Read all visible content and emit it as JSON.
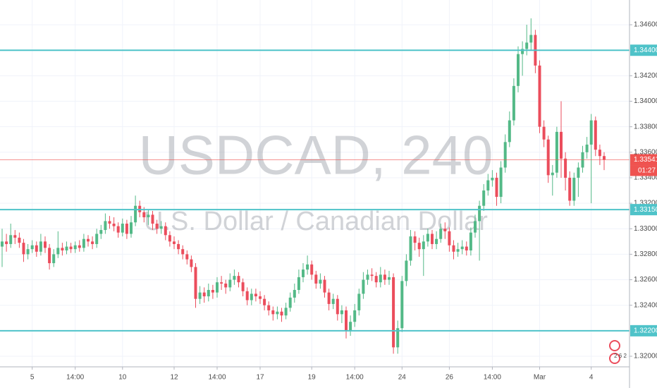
{
  "chart_data": {
    "type": "candlestick",
    "title": "USDCAD, 240",
    "subtitle": "U.S. Dollar / Canadian Dollar",
    "up_color": "#53b987",
    "down_color": "#eb4d5c",
    "level_color": "#4fc3c9",
    "last_color": "#ef5350",
    "grid": true,
    "ylim": [
      1.31917,
      1.34794
    ],
    "yticks": [
      {
        "value": 1.32,
        "label": "1.32000"
      },
      {
        "value": 1.324,
        "label": "1.32400"
      },
      {
        "value": 1.326,
        "label": "1.32600"
      },
      {
        "value": 1.328,
        "label": "1.32800"
      },
      {
        "value": 1.33,
        "label": "1.33000"
      },
      {
        "value": 1.332,
        "label": "1.33200"
      },
      {
        "value": 1.334,
        "label": "1.33400"
      },
      {
        "value": 1.336,
        "label": "1.33600"
      },
      {
        "value": 1.338,
        "label": "1.33800"
      },
      {
        "value": 1.34,
        "label": "1.34000"
      },
      {
        "value": 1.342,
        "label": "1.34200"
      },
      {
        "value": 1.346,
        "label": "1.34600"
      }
    ],
    "levels": [
      {
        "value": 1.344,
        "label": "1.34400"
      },
      {
        "value": 1.3315,
        "label": "1.33150"
      },
      {
        "value": 1.322,
        "label": "1.32200"
      }
    ],
    "last_price": 1.33541,
    "countdown": "01:27",
    "events_badge": "2 6 2",
    "categories": [
      null,
      null,
      null,
      null,
      null,
      null,
      null,
      "5",
      null,
      null,
      null,
      null,
      null,
      null,
      null,
      null,
      null,
      "14:00",
      null,
      null,
      null,
      null,
      null,
      null,
      null,
      null,
      null,
      null,
      "10",
      null,
      null,
      null,
      null,
      null,
      null,
      null,
      null,
      null,
      null,
      null,
      "12",
      null,
      null,
      null,
      null,
      null,
      null,
      null,
      null,
      null,
      "14:00",
      null,
      null,
      null,
      null,
      null,
      null,
      null,
      null,
      null,
      "17",
      null,
      null,
      null,
      null,
      null,
      null,
      null,
      null,
      null,
      null,
      null,
      "19",
      null,
      null,
      null,
      null,
      null,
      null,
      null,
      null,
      null,
      "14:00",
      null,
      null,
      null,
      null,
      null,
      null,
      null,
      null,
      null,
      null,
      "24",
      null,
      null,
      null,
      null,
      null,
      null,
      null,
      null,
      null,
      null,
      "26",
      null,
      null,
      null,
      null,
      null,
      null,
      null,
      null,
      null,
      "14:00",
      null,
      null,
      null,
      null,
      null,
      null,
      null,
      null,
      null,
      null,
      "Mar",
      null,
      null,
      null,
      null,
      null,
      null,
      null,
      null,
      null,
      null,
      null,
      "4",
      null,
      null,
      null
    ],
    "open": [
      1.3286,
      1.329,
      1.3288,
      1.3295,
      1.3293,
      1.3289,
      1.328,
      1.3284,
      1.3287,
      1.3282,
      1.329,
      1.3285,
      1.3273,
      1.328,
      1.3285,
      1.3283,
      1.3286,
      1.3284,
      1.3287,
      1.3285,
      1.3292,
      1.329,
      1.3288,
      1.3296,
      1.3299,
      1.3306,
      1.3304,
      1.3302,
      1.3297,
      1.3304,
      1.3296,
      1.3305,
      1.3318,
      1.3313,
      1.3309,
      1.3311,
      1.3304,
      1.33,
      1.3302,
      1.3295,
      1.329,
      1.3288,
      1.3284,
      1.328,
      1.3276,
      1.327,
      1.3245,
      1.325,
      1.3247,
      1.3252,
      1.325,
      1.3258,
      1.3257,
      1.3254,
      1.326,
      1.3263,
      1.3258,
      1.3251,
      1.3244,
      1.3249,
      1.3247,
      1.3245,
      1.324,
      1.3236,
      1.3233,
      1.3235,
      1.3232,
      1.3238,
      1.3246,
      1.3252,
      1.3262,
      1.3268,
      1.3272,
      1.3264,
      1.3257,
      1.326,
      1.325,
      1.3241,
      1.3245,
      1.3233,
      1.3236,
      1.322,
      1.3227,
      1.3236,
      1.3249,
      1.326,
      1.3264,
      1.3263,
      1.3258,
      1.3264,
      1.326,
      1.3262,
      1.3207,
      1.3222,
      1.3259,
      1.3275,
      1.3294,
      1.3289,
      1.3284,
      1.329,
      1.3296,
      1.3288,
      1.3292,
      1.33,
      1.3298,
      1.3287,
      1.3282,
      1.3284,
      1.3286,
      1.3283,
      1.3297,
      1.3306,
      1.3318,
      1.333,
      1.3338,
      1.334,
      1.3325,
      1.3348,
      1.3368,
      1.3385,
      1.3412,
      1.3437,
      1.3441,
      1.3446,
      1.3452,
      1.3428,
      1.338,
      1.337,
      1.3342,
      1.3344,
      1.3376,
      1.3355,
      1.334,
      1.3322,
      1.334,
      1.3348,
      1.336,
      1.3366,
      1.3385,
      1.3362,
      1.3357
    ],
    "high": [
      1.33,
      1.3296,
      1.3304,
      1.3299,
      1.3297,
      1.3292,
      1.3288,
      1.3291,
      1.329,
      1.3296,
      1.3294,
      1.3288,
      1.3284,
      1.3298,
      1.3289,
      1.329,
      1.3289,
      1.329,
      1.3291,
      1.3296,
      1.3295,
      1.3294,
      1.33,
      1.3303,
      1.3312,
      1.331,
      1.3309,
      1.3305,
      1.3308,
      1.3307,
      1.331,
      1.3326,
      1.3322,
      1.3317,
      1.3315,
      1.3314,
      1.3307,
      1.3306,
      1.3305,
      1.3298,
      1.3294,
      1.3291,
      1.3287,
      1.3283,
      1.3279,
      1.3273,
      1.3255,
      1.3254,
      1.3257,
      1.3256,
      1.3262,
      1.3263,
      1.326,
      1.3265,
      1.3268,
      1.3266,
      1.3261,
      1.3254,
      1.3253,
      1.3253,
      1.3251,
      1.3248,
      1.3243,
      1.3239,
      1.3239,
      1.3238,
      1.3242,
      1.325,
      1.3257,
      1.3268,
      1.3273,
      1.3279,
      1.3275,
      1.3267,
      1.3265,
      1.3263,
      1.3253,
      1.3249,
      1.3248,
      1.324,
      1.3239,
      1.3232,
      1.3241,
      1.3253,
      1.3266,
      1.3268,
      1.3269,
      1.3266,
      1.327,
      1.3268,
      1.3267,
      1.3265,
      1.3228,
      1.3263,
      1.328,
      1.3299,
      1.3298,
      1.3293,
      1.3295,
      1.33,
      1.3299,
      1.3298,
      1.3304,
      1.3305,
      1.3301,
      1.3291,
      1.3289,
      1.3291,
      1.329,
      1.3301,
      1.3311,
      1.3322,
      1.3335,
      1.3343,
      1.3346,
      1.3344,
      1.3353,
      1.3374,
      1.3392,
      1.3418,
      1.3443,
      1.3447,
      1.346,
      1.3465,
      1.3456,
      1.3432,
      1.3385,
      1.3373,
      1.335,
      1.338,
      1.34,
      1.336,
      1.3345,
      1.3344,
      1.3352,
      1.3365,
      1.3372,
      1.339,
      1.3388,
      1.3366,
      1.336
    ],
    "low": [
      1.327,
      1.3282,
      1.3285,
      1.3288,
      1.3285,
      1.3274,
      1.3276,
      1.3281,
      1.3278,
      1.3279,
      1.3281,
      1.3268,
      1.327,
      1.3277,
      1.3279,
      1.328,
      1.3281,
      1.3281,
      1.3282,
      1.3282,
      1.3286,
      1.3284,
      1.3285,
      1.3292,
      1.3296,
      1.33,
      1.3298,
      1.3293,
      1.3294,
      1.3292,
      1.3293,
      1.3302,
      1.3309,
      1.3305,
      1.3303,
      1.3299,
      1.3296,
      1.3296,
      1.3291,
      1.3286,
      1.3284,
      1.328,
      1.3276,
      1.3272,
      1.3266,
      1.3238,
      1.3241,
      1.3242,
      1.3243,
      1.3245,
      1.3246,
      1.3252,
      1.3249,
      1.3251,
      1.3256,
      1.3254,
      1.3247,
      1.324,
      1.324,
      1.3243,
      1.3241,
      1.3236,
      1.3232,
      1.3228,
      1.3229,
      1.3227,
      1.3229,
      1.3235,
      1.3242,
      1.3249,
      1.3258,
      1.3264,
      1.326,
      1.3253,
      1.3253,
      1.3246,
      1.3236,
      1.3237,
      1.3228,
      1.3226,
      1.3214,
      1.3216,
      1.3223,
      1.3232,
      1.3245,
      1.3256,
      1.3259,
      1.3254,
      1.3254,
      1.3256,
      1.3256,
      1.3202,
      1.3202,
      1.3219,
      1.3255,
      1.3271,
      1.3283,
      1.3278,
      1.3263,
      1.3286,
      1.3284,
      1.3284,
      1.3289,
      1.3292,
      1.3282,
      1.3276,
      1.3278,
      1.328,
      1.3279,
      1.3279,
      1.3293,
      1.3275,
      1.3314,
      1.3326,
      1.3333,
      1.3318,
      1.332,
      1.3344,
      1.3364,
      1.3381,
      1.3407,
      1.342,
      1.3436,
      1.344,
      1.3422,
      1.3375,
      1.3364,
      1.3336,
      1.3326,
      1.334,
      1.334,
      1.333,
      1.3318,
      1.3318,
      1.3325,
      1.3344,
      1.3355,
      1.332,
      1.3357,
      1.335,
      1.3346
    ],
    "close": [
      1.329,
      1.3288,
      1.3295,
      1.3293,
      1.3289,
      1.328,
      1.3284,
      1.3287,
      1.3282,
      1.329,
      1.3285,
      1.3273,
      1.328,
      1.3285,
      1.3283,
      1.3286,
      1.3284,
      1.3287,
      1.3285,
      1.3292,
      1.329,
      1.3288,
      1.3296,
      1.3299,
      1.3306,
      1.3304,
      1.3302,
      1.3297,
      1.3304,
      1.3296,
      1.3305,
      1.3318,
      1.3313,
      1.3309,
      1.3311,
      1.3304,
      1.33,
      1.3302,
      1.3295,
      1.329,
      1.3288,
      1.3284,
      1.328,
      1.3276,
      1.327,
      1.3245,
      1.325,
      1.3247,
      1.3252,
      1.325,
      1.3258,
      1.3257,
      1.3254,
      1.326,
      1.3263,
      1.3258,
      1.3251,
      1.3244,
      1.3249,
      1.3247,
      1.3245,
      1.324,
      1.3236,
      1.3233,
      1.3235,
      1.3232,
      1.3238,
      1.3246,
      1.3252,
      1.3262,
      1.3268,
      1.3272,
      1.3264,
      1.3257,
      1.326,
      1.325,
      1.3241,
      1.3245,
      1.3233,
      1.3236,
      1.322,
      1.3227,
      1.3236,
      1.3249,
      1.326,
      1.3264,
      1.3263,
      1.3258,
      1.3264,
      1.326,
      1.3262,
      1.3207,
      1.3222,
      1.3259,
      1.3275,
      1.3294,
      1.3289,
      1.3284,
      1.329,
      1.3296,
      1.3288,
      1.3292,
      1.33,
      1.3298,
      1.3287,
      1.3282,
      1.3284,
      1.3286,
      1.3283,
      1.3297,
      1.3306,
      1.3318,
      1.333,
      1.3338,
      1.334,
      1.3325,
      1.3348,
      1.3368,
      1.3385,
      1.3412,
      1.3437,
      1.3441,
      1.3446,
      1.3452,
      1.3428,
      1.338,
      1.337,
      1.3342,
      1.3344,
      1.3376,
      1.3355,
      1.334,
      1.3322,
      1.334,
      1.3348,
      1.336,
      1.3366,
      1.3385,
      1.3362,
      1.3357,
      1.33541
    ]
  }
}
